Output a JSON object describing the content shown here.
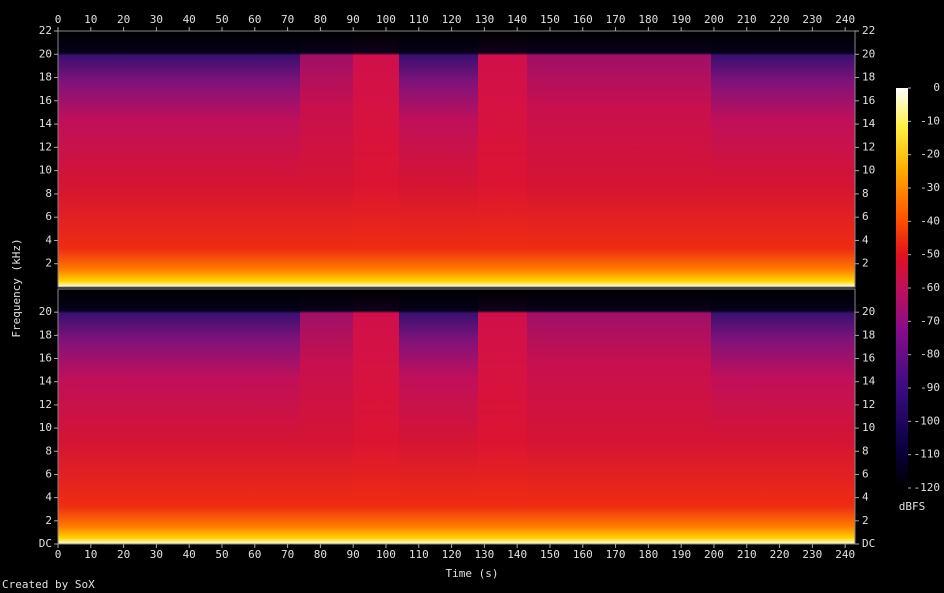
{
  "chart_data": {
    "type": "spectrogram",
    "x_label": "Time (s)",
    "y_label": "Frequency (kHz)",
    "footer": "Created by SoX",
    "xlim": [
      0,
      243
    ],
    "xticks": [
      0,
      10,
      20,
      30,
      40,
      50,
      60,
      70,
      80,
      90,
      100,
      110,
      120,
      130,
      140,
      150,
      160,
      170,
      180,
      190,
      200,
      210,
      220,
      230,
      240
    ],
    "panels": [
      {
        "ylim": [
          0,
          22
        ],
        "yticks": [
          2,
          4,
          6,
          8,
          10,
          12,
          14,
          16,
          18,
          20,
          22
        ]
      },
      {
        "ylim": [
          0,
          22
        ],
        "yticks": [
          {
            "value": 0,
            "label": "DC"
          },
          2,
          4,
          6,
          8,
          10,
          12,
          14,
          16,
          18,
          20
        ]
      }
    ],
    "colorbar": {
      "label": "dBFS",
      "lim": [
        -120,
        0
      ],
      "ticks": [
        0,
        -10,
        -20,
        -30,
        -40,
        -50,
        -60,
        -70,
        -80,
        -90,
        -100,
        -110,
        -120
      ]
    }
  }
}
